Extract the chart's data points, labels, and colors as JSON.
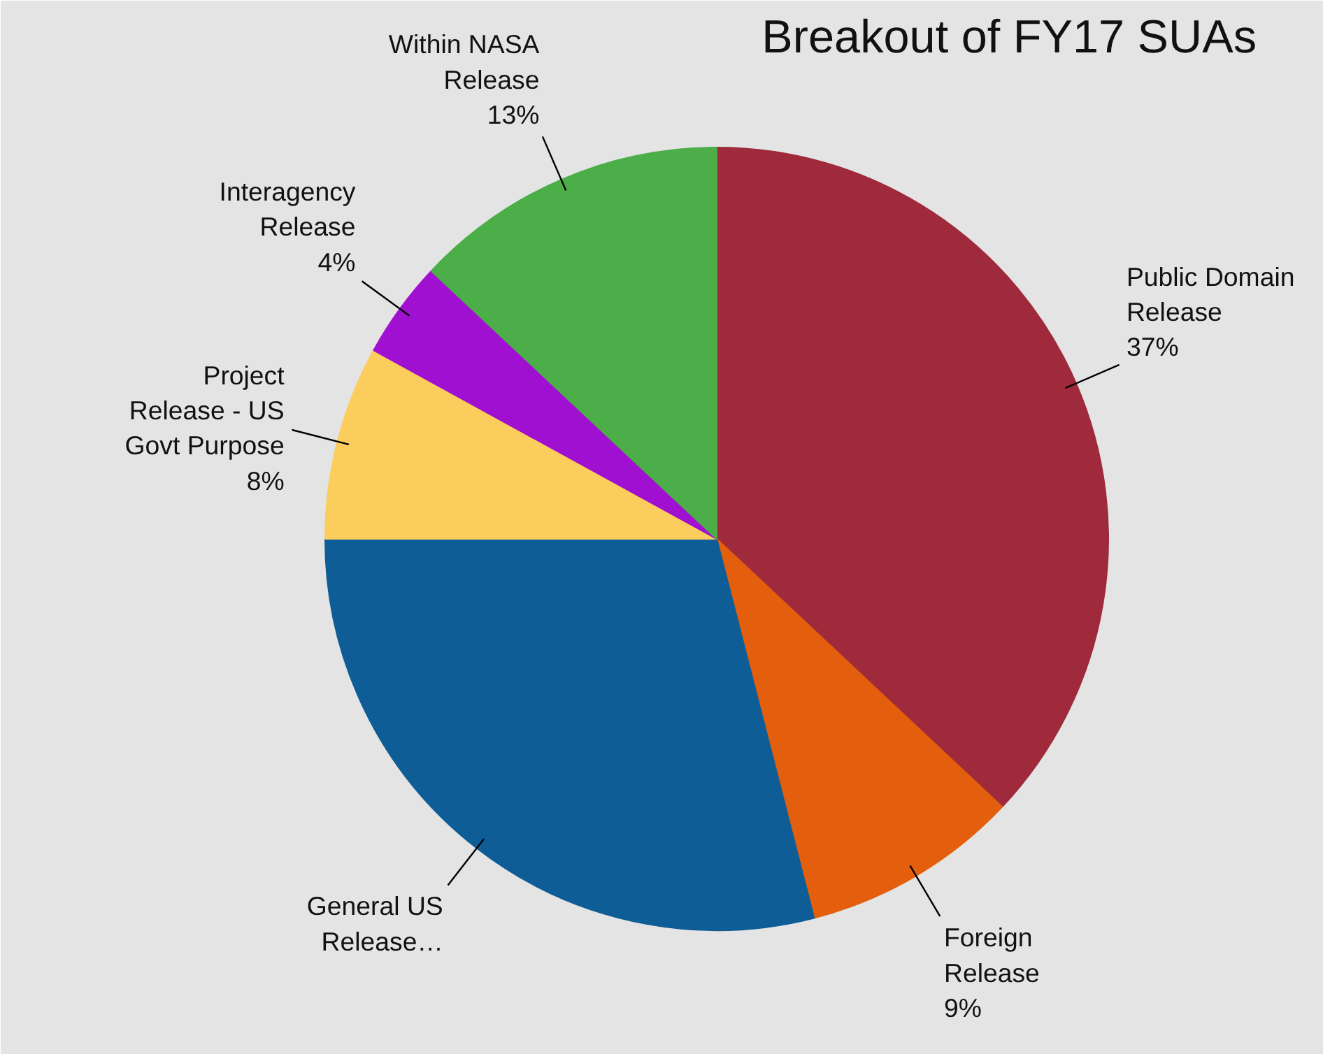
{
  "chart_data": {
    "type": "pie",
    "title": "Breakout of FY17 SUAs",
    "categories": [
      "Public Domain Release",
      "Foreign Release",
      "General US Release…",
      "Project Release - US Govt Purpose",
      "Interagency Release",
      "Within NASA Release"
    ],
    "values": [
      37,
      9,
      29,
      8,
      4,
      13
    ],
    "value_labels": [
      "37%",
      "9%",
      null,
      "8%",
      "4%",
      "13%"
    ],
    "colors": [
      "#9e2a3c",
      "#e35f0d",
      "#0f5d96",
      "#fbcd5c",
      "#a010d0",
      "#4cae48"
    ]
  }
}
